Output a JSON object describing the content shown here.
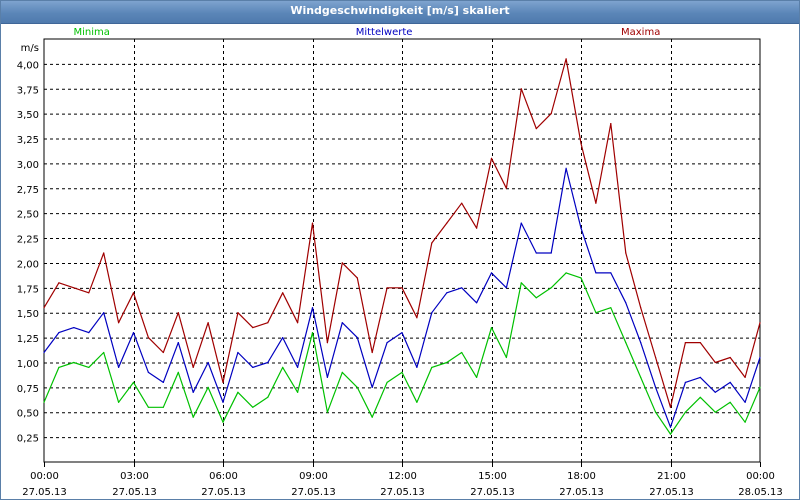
{
  "window": {
    "title": "Windgeschwindigkeit [m/s] skaliert"
  },
  "chart_data": {
    "type": "line",
    "title": "Windgeschwindigkeit [m/s] skaliert",
    "ylabel": "m/s",
    "ylim": [
      0,
      4.25
    ],
    "xlim": [
      0,
      24
    ],
    "grid": true,
    "legend_placement": "top",
    "y_ticks": [
      "0,25",
      "0,50",
      "0,75",
      "1,00",
      "1,25",
      "1,50",
      "1,75",
      "2,00",
      "2,25",
      "2,50",
      "2,75",
      "3,00",
      "3,25",
      "3,50",
      "3,75",
      "4,00"
    ],
    "x_ticks": [
      {
        "time": "00:00",
        "date": "27.05.13"
      },
      {
        "time": "03:00",
        "date": "27.05.13"
      },
      {
        "time": "06:00",
        "date": "27.05.13"
      },
      {
        "time": "09:00",
        "date": "27.05.13"
      },
      {
        "time": "12:00",
        "date": "27.05.13"
      },
      {
        "time": "15:00",
        "date": "27.05.13"
      },
      {
        "time": "18:00",
        "date": "27.05.13"
      },
      {
        "time": "21:00",
        "date": "27.05.13"
      },
      {
        "time": "00:00",
        "date": "28.05.13"
      }
    ],
    "x_hours": [
      0,
      0.5,
      1,
      1.5,
      2,
      2.5,
      3,
      3.5,
      4,
      4.5,
      5,
      5.5,
      6,
      6.5,
      7,
      7.5,
      8,
      8.5,
      9,
      9.5,
      10,
      10.5,
      11,
      11.5,
      12,
      12.5,
      13,
      13.5,
      14,
      14.5,
      15,
      15.5,
      16,
      16.5,
      17,
      17.5,
      18,
      18.5,
      19,
      19.5,
      20,
      20.5,
      21,
      21.5,
      22,
      22.5,
      23,
      23.5,
      24
    ],
    "series": [
      {
        "name": "Minima",
        "color": "#00c000",
        "values": [
          0.6,
          0.95,
          1.0,
          0.95,
          1.1,
          0.6,
          0.8,
          0.55,
          0.55,
          0.9,
          0.45,
          0.75,
          0.4,
          0.7,
          0.55,
          0.65,
          0.95,
          0.7,
          1.3,
          0.5,
          0.9,
          0.75,
          0.45,
          0.8,
          0.9,
          0.6,
          0.95,
          1.0,
          1.1,
          0.85,
          1.35,
          1.05,
          1.8,
          1.65,
          1.75,
          1.9,
          1.85,
          1.5,
          1.55,
          1.2,
          0.85,
          0.5,
          0.28,
          0.5,
          0.65,
          0.5,
          0.6,
          0.4,
          0.75
        ]
      },
      {
        "name": "Mittelwerte",
        "color": "#0000c0",
        "values": [
          1.1,
          1.3,
          1.35,
          1.3,
          1.5,
          0.95,
          1.3,
          0.9,
          0.8,
          1.2,
          0.7,
          1.0,
          0.6,
          1.1,
          0.95,
          1.0,
          1.25,
          0.95,
          1.55,
          0.85,
          1.4,
          1.25,
          0.75,
          1.2,
          1.3,
          0.95,
          1.5,
          1.7,
          1.75,
          1.6,
          1.9,
          1.75,
          2.4,
          2.1,
          2.1,
          2.95,
          2.35,
          1.9,
          1.9,
          1.6,
          1.2,
          0.75,
          0.35,
          0.8,
          0.85,
          0.7,
          0.8,
          0.6,
          1.05
        ]
      },
      {
        "name": "Maxima",
        "color": "#a00000",
        "values": [
          1.55,
          1.8,
          1.75,
          1.7,
          2.1,
          1.4,
          1.7,
          1.25,
          1.1,
          1.5,
          0.95,
          1.4,
          0.8,
          1.5,
          1.35,
          1.4,
          1.7,
          1.4,
          2.4,
          1.2,
          2.0,
          1.85,
          1.1,
          1.75,
          1.75,
          1.45,
          2.2,
          2.4,
          2.6,
          2.35,
          3.05,
          2.75,
          3.75,
          3.35,
          3.5,
          4.05,
          3.2,
          2.6,
          3.4,
          2.1,
          1.55,
          1.05,
          0.55,
          1.2,
          1.2,
          1.0,
          1.05,
          0.85,
          1.4
        ]
      }
    ]
  }
}
